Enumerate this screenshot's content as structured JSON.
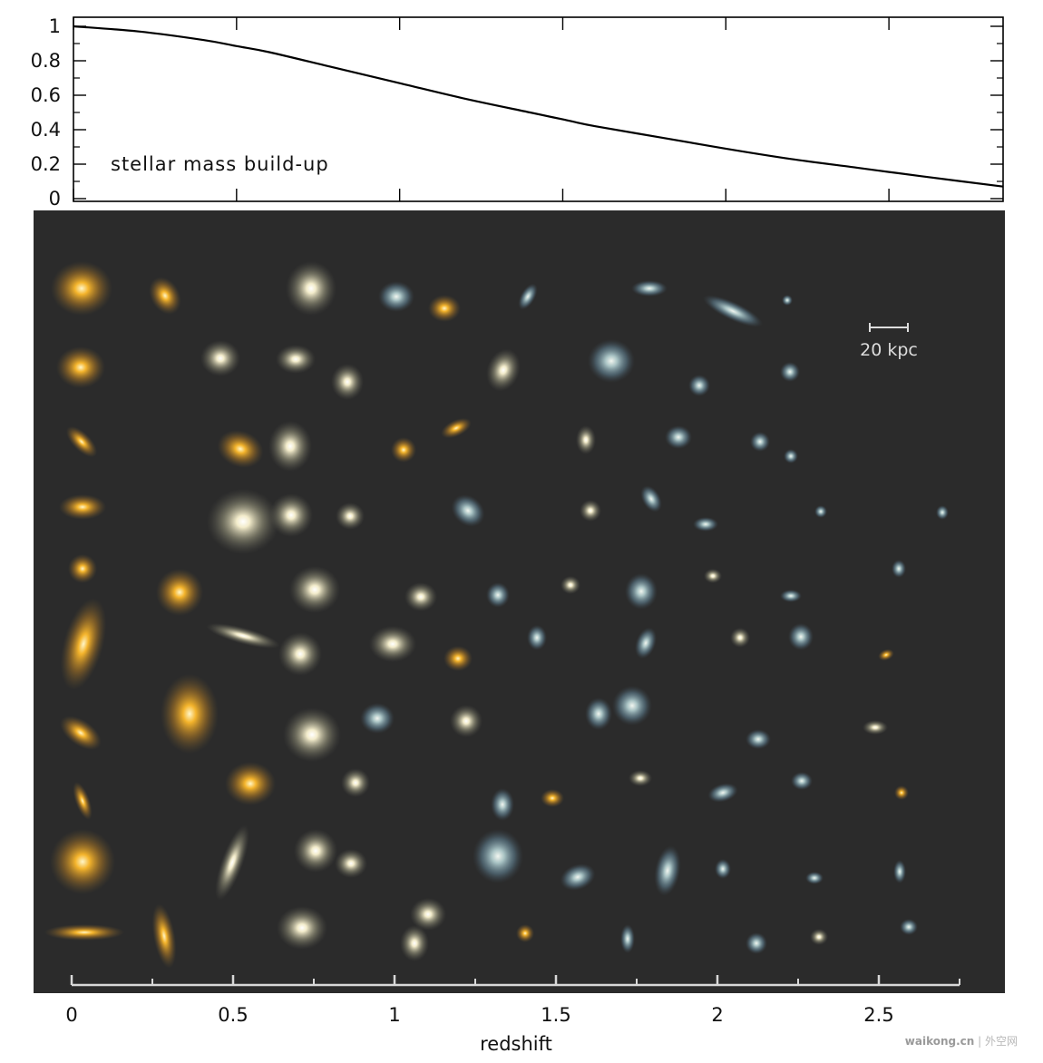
{
  "chart_data": [
    {
      "type": "line",
      "annotation": "stellar mass build-up",
      "xlim": [
        0,
        2.85
      ],
      "ylim": [
        0,
        1
      ],
      "y_ticks": [
        0,
        0.2,
        0.4,
        0.6,
        0.8,
        1
      ],
      "y_tick_labels": [
        "0",
        "0.2",
        "0.4",
        "0.6",
        "0.8",
        "1"
      ],
      "x_ticks": [
        0,
        0.5,
        1,
        1.5,
        2,
        2.5
      ],
      "series": [
        {
          "x": [
            0,
            0.2,
            0.4,
            0.5,
            0.6,
            0.8,
            1.0,
            1.2,
            1.4,
            1.5,
            1.6,
            1.8,
            2.0,
            2.2,
            2.4,
            2.5,
            2.6,
            2.85
          ],
          "y": [
            1.0,
            0.97,
            0.92,
            0.885,
            0.85,
            0.76,
            0.67,
            0.58,
            0.5,
            0.46,
            0.42,
            0.355,
            0.29,
            0.23,
            0.18,
            0.155,
            0.13,
            0.07
          ]
        }
      ]
    },
    {
      "type": "scatter",
      "xlabel": "redshift",
      "x_ticks": [
        0,
        0.5,
        1,
        1.5,
        2,
        2.5
      ],
      "x_tick_labels": [
        "0",
        "0.5",
        "1",
        "1.5",
        "2",
        "2.5"
      ],
      "scale_bar_label": "20 kpc",
      "background": "#2b2b2b"
    }
  ],
  "colors": {
    "line": "#000000",
    "panel_bg": "#2b2b2b",
    "galaxy_low_z": "#f0b030",
    "galaxy_mid_z": "#c9c09a",
    "galaxy_high_z": "#8fb6c8"
  },
  "watermark": {
    "site": "waikong.cn",
    "sep": " | ",
    "name": "外空网"
  }
}
